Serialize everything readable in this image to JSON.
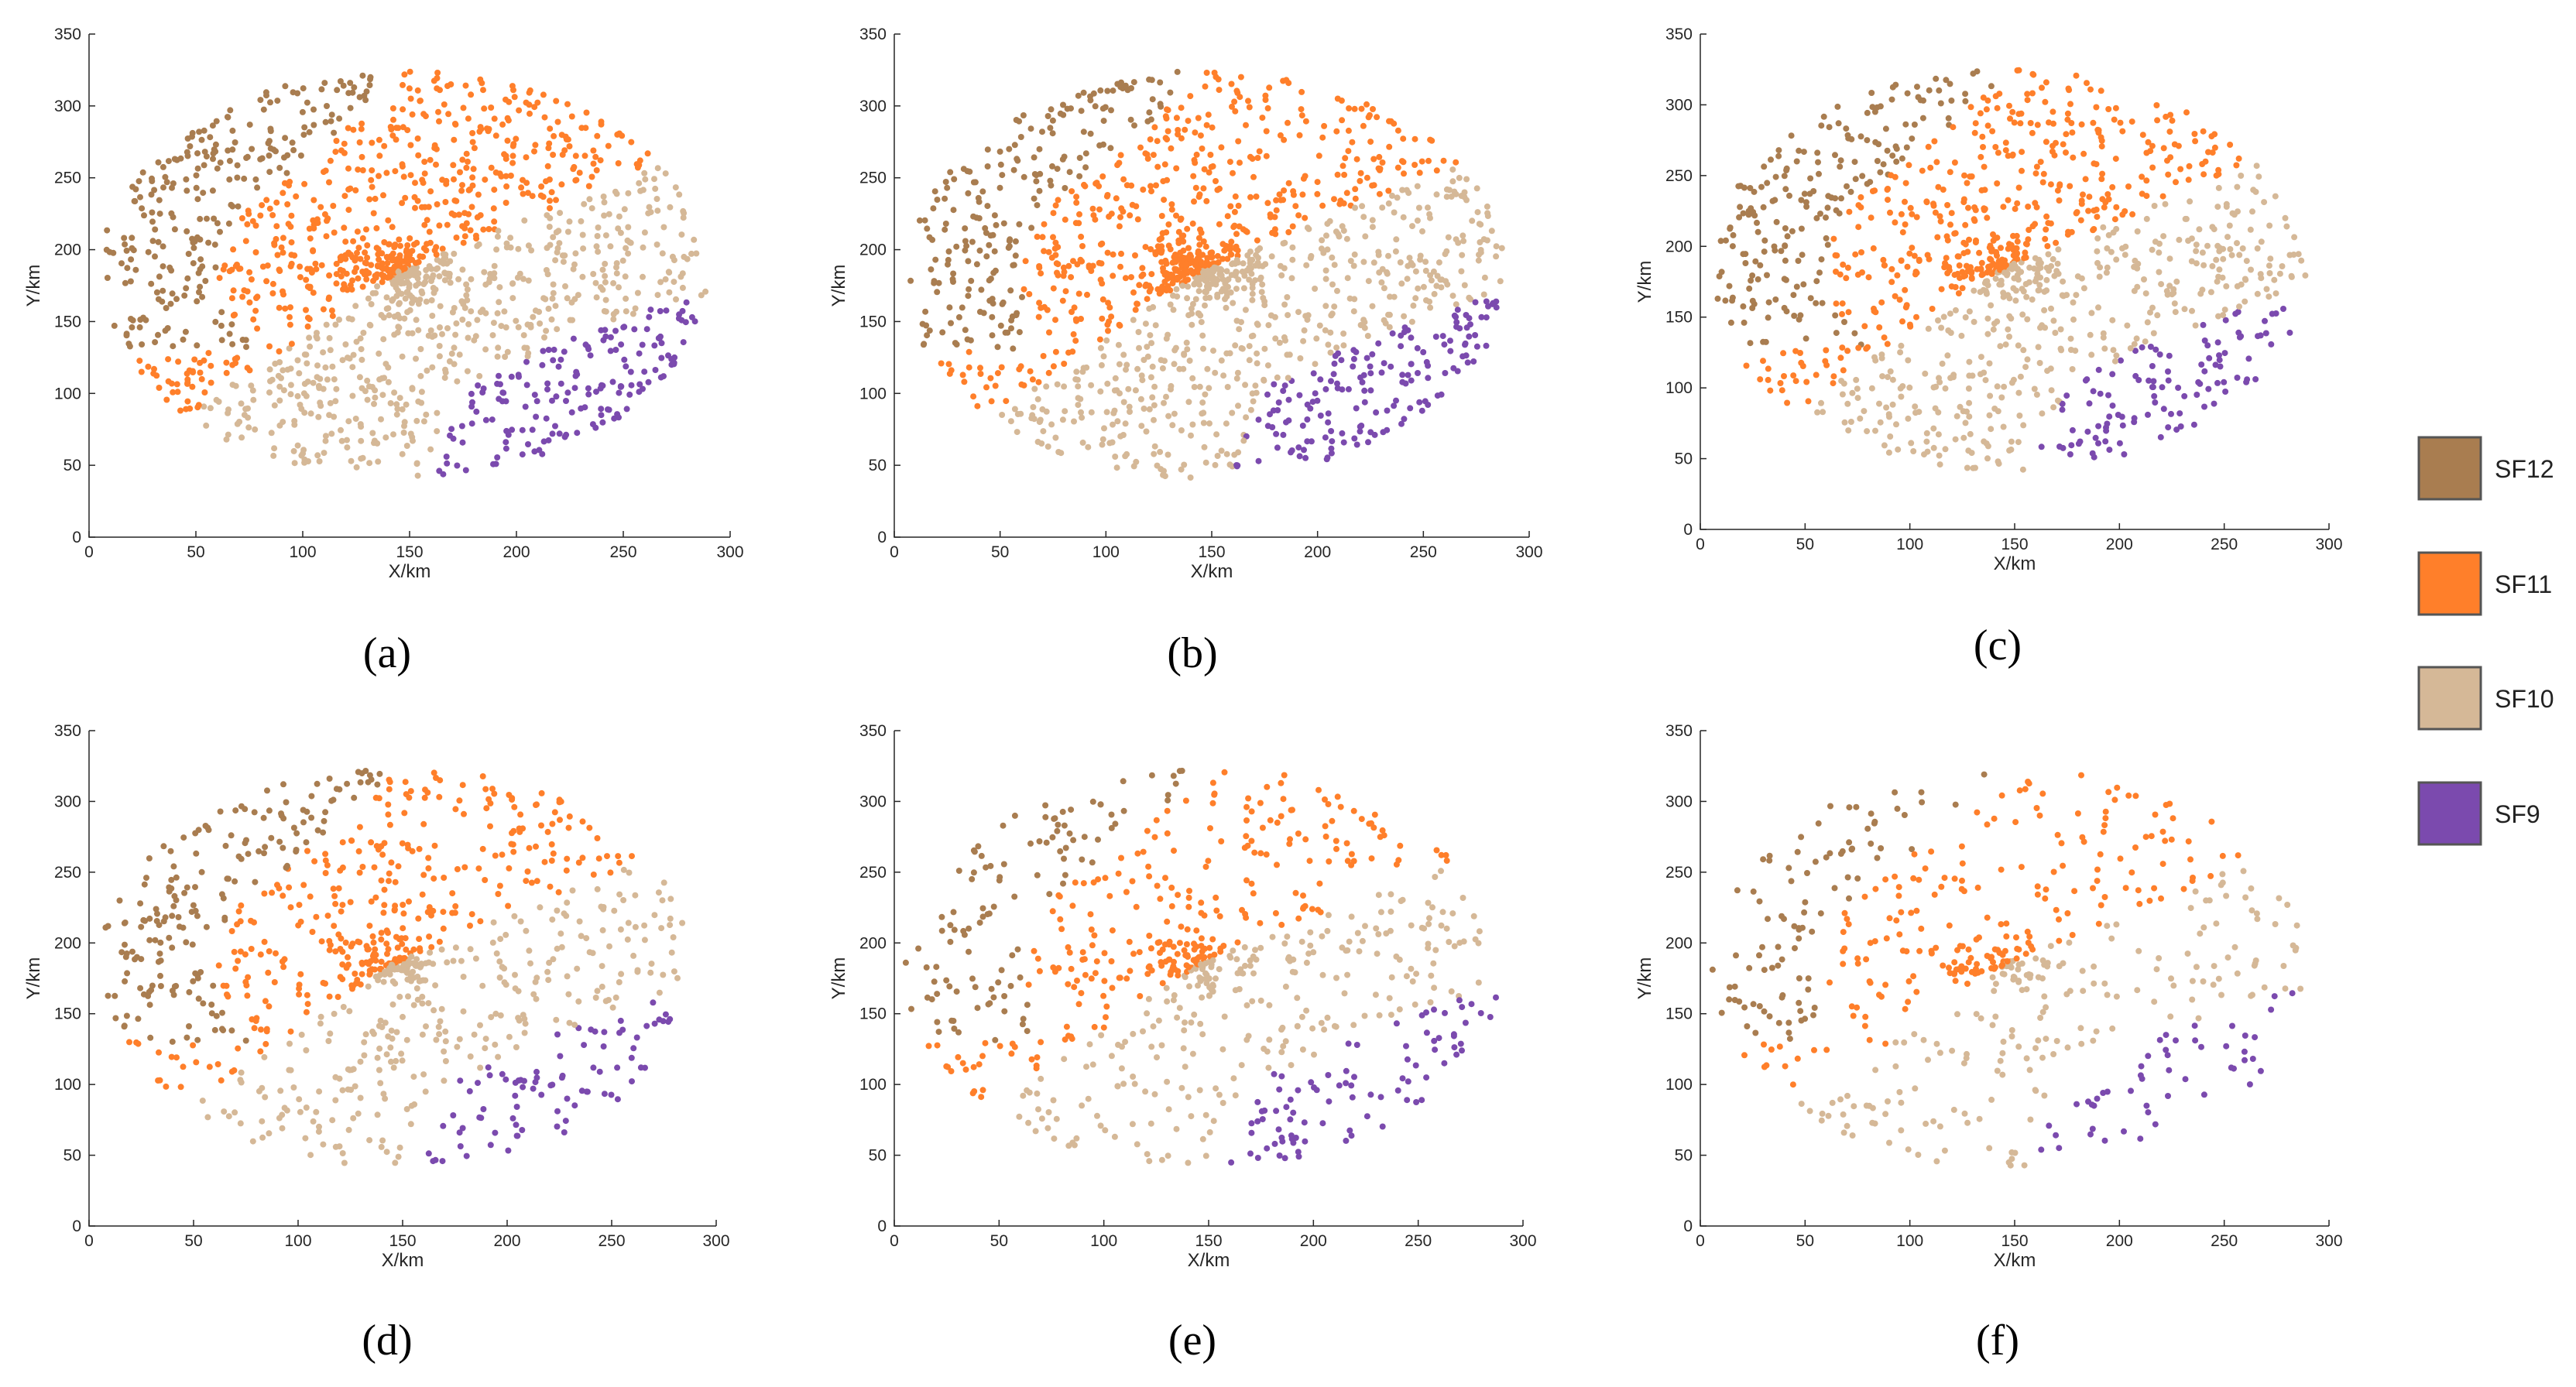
{
  "figure": {
    "legend": [
      {
        "label": "SF12",
        "color": "#A97D50"
      },
      {
        "label": "SF11",
        "color": "#FF7F2A"
      },
      {
        "label": "SF10",
        "color": "#D5B897"
      },
      {
        "label": "SF9",
        "color": "#7B4AAE"
      }
    ]
  },
  "chart_data": [
    {
      "type": "scatter",
      "caption": "(a)",
      "xlabel": "X/km",
      "ylabel": "Y/km",
      "xlim": [
        0,
        300
      ],
      "ylim": [
        0,
        350
      ],
      "xticks": [
        0,
        50,
        100,
        150,
        200,
        250,
        300
      ],
      "yticks": [
        0,
        50,
        100,
        150,
        200,
        250,
        300,
        350
      ],
      "n_points": 1600,
      "seed": 11
    },
    {
      "type": "scatter",
      "caption": "(b)",
      "xlabel": "X/km",
      "ylabel": "Y/km",
      "xlim": [
        0,
        300
      ],
      "ylim": [
        0,
        350
      ],
      "xticks": [
        0,
        50,
        100,
        150,
        200,
        250,
        300
      ],
      "yticks": [
        0,
        50,
        100,
        150,
        200,
        250,
        300,
        350
      ],
      "n_points": 1500,
      "seed": 23
    },
    {
      "type": "scatter",
      "caption": "(c)",
      "xlabel": "X/km",
      "ylabel": "Y/km",
      "xlim": [
        0,
        300
      ],
      "ylim": [
        0,
        350
      ],
      "xticks": [
        0,
        50,
        100,
        150,
        200,
        250,
        300
      ],
      "yticks": [
        0,
        50,
        100,
        150,
        200,
        250,
        300,
        350
      ],
      "n_points": 1200,
      "seed": 37
    },
    {
      "type": "scatter",
      "caption": "(d)",
      "xlabel": "X/km",
      "ylabel": "Y/km",
      "xlim": [
        0,
        300
      ],
      "ylim": [
        0,
        350
      ],
      "xticks": [
        0,
        50,
        100,
        150,
        200,
        250,
        300
      ],
      "yticks": [
        0,
        50,
        100,
        150,
        200,
        250,
        300,
        350
      ],
      "n_points": 950,
      "seed": 41
    },
    {
      "type": "scatter",
      "caption": "(e)",
      "xlabel": "X/km",
      "ylabel": "Y/km",
      "xlim": [
        0,
        300
      ],
      "ylim": [
        0,
        350
      ],
      "xticks": [
        0,
        50,
        100,
        150,
        200,
        250,
        300
      ],
      "yticks": [
        0,
        50,
        100,
        150,
        200,
        250,
        300,
        350
      ],
      "n_points": 750,
      "seed": 53
    },
    {
      "type": "scatter",
      "caption": "(f)",
      "xlabel": "X/km",
      "ylabel": "Y/km",
      "xlim": [
        0,
        300
      ],
      "ylim": [
        0,
        350
      ],
      "xticks": [
        0,
        50,
        100,
        150,
        200,
        250,
        300
      ],
      "yticks": [
        0,
        50,
        100,
        150,
        200,
        250,
        300,
        350
      ],
      "n_points": 560,
      "seed": 67
    }
  ]
}
